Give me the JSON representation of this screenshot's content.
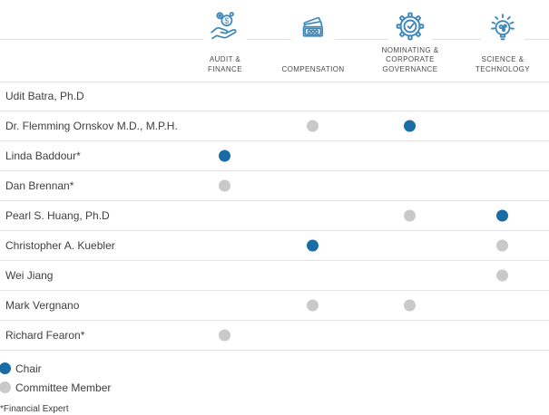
{
  "header": {
    "committees": [
      {
        "label_lines": [
          "AUDIT &",
          "FINANCE"
        ],
        "icon": "hand-coin-icon"
      },
      {
        "label_lines": [
          "COMPENSATION"
        ],
        "icon": "banknotes-icon"
      },
      {
        "label_lines": [
          "NOMINATING &",
          "CORPORATE",
          "GOVERNANCE"
        ],
        "icon": "gear-check-icon"
      },
      {
        "label_lines": [
          "SCIENCE &",
          "TECHNOLOGY"
        ],
        "icon": "lightbulb-icon"
      }
    ]
  },
  "members": [
    {
      "name": "Udit Batra, Ph.D",
      "roles": [
        "",
        "",
        "",
        ""
      ]
    },
    {
      "name": "Dr. Flemming Ornskov M.D., M.P.H.",
      "roles": [
        "",
        "member",
        "chair",
        ""
      ]
    },
    {
      "name": "Linda Baddour*",
      "roles": [
        "chair",
        "",
        "",
        ""
      ]
    },
    {
      "name": "Dan Brennan*",
      "roles": [
        "member",
        "",
        "",
        ""
      ]
    },
    {
      "name": "Pearl S. Huang, Ph.D",
      "roles": [
        "",
        "",
        "member",
        "chair"
      ]
    },
    {
      "name": "Christopher A. Kuebler",
      "roles": [
        "",
        "chair",
        "",
        "member"
      ]
    },
    {
      "name": "Wei Jiang",
      "roles": [
        "",
        "",
        "",
        "member"
      ]
    },
    {
      "name": "Mark Vergnano",
      "roles": [
        "",
        "member",
        "member",
        ""
      ]
    },
    {
      "name": "Richard Fearon*",
      "roles": [
        "member",
        "",
        "",
        ""
      ]
    }
  ],
  "legend": {
    "chair_label": "Chair",
    "member_label": "Committee Member",
    "footnote": "*Financial Expert"
  },
  "colors": {
    "chair": "#1a6ca4",
    "member": "#c9c9c9",
    "icon_stroke": "#3d87ba"
  }
}
